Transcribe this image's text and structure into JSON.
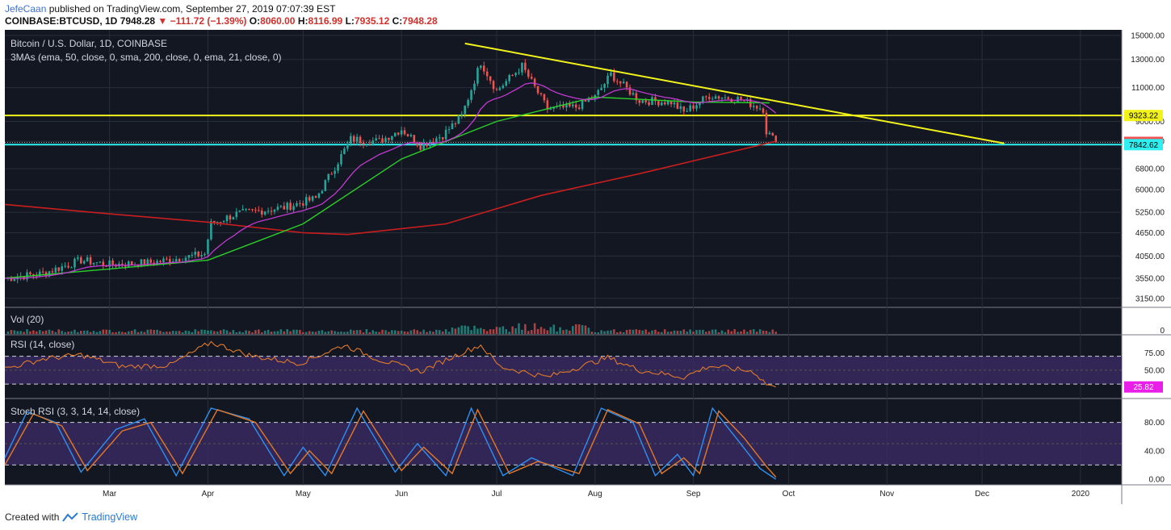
{
  "header": {
    "author": "JefeCaan",
    "published": "published on TradingView.com, September 27, 2019 07:07:39 EST",
    "symbol": "COINBASE:BTCUSD, 1D",
    "last": "7948.28",
    "change": "−111.72 (−1.39%)",
    "o_label": "O:",
    "o": "8060.00",
    "h_label": "H:",
    "h": "8116.99",
    "l_label": "L:",
    "l": "7935.12",
    "c_label": "C:",
    "c": "7948.28"
  },
  "footer": {
    "created": "Created with",
    "brand": "TradingView"
  },
  "colors": {
    "background": "#131722",
    "up": "#26a69a",
    "down": "#ef5350",
    "ema50": "#2bd12b",
    "sma200": "#c81e1e",
    "ema21": "#c03ad0",
    "trend": "#f3f31c",
    "cyan": "#2ef0f0",
    "rsi": "#e0792b",
    "stoch_k": "#2f8ff0",
    "stoch_d": "#e0792b",
    "band": "#3a2a63"
  },
  "chart_data": [
    {
      "type": "candlestick",
      "title": "Bitcoin / U.S. Dollar, 1D, COINBASE",
      "indicator_label": "3MAs (ema, 50, close, 0, sma, 200, close, 0, ema, 21, close, 0)",
      "price_axis_ticks": [
        "15000.00",
        "13000.00",
        "11000.00",
        "9000.00",
        "8000.00",
        "6800.00",
        "6000.00",
        "5250.00",
        "4650.00",
        "4050.00",
        "3550.00",
        "3150.00"
      ],
      "price_axis_values": [
        15000,
        13000,
        11000,
        9000,
        8000,
        6800,
        6000,
        5250,
        4650,
        4050,
        3550,
        3150
      ],
      "log_scale": true,
      "time_axis_labels": [
        "Mar",
        "Apr",
        "May",
        "Jun",
        "Jul",
        "Aug",
        "Sep",
        "Oct",
        "Nov",
        "Dec",
        "2020"
      ],
      "price_badges": [
        {
          "text": "9323.22",
          "value": 9323.22,
          "color": "#f3f31c"
        },
        {
          "text": "7948.28",
          "value": 7948.28,
          "color": "#ef5350"
        },
        {
          "text": "7842.62",
          "value": 7842.62,
          "color": "#2ef0f0"
        }
      ],
      "horizontal_lines": [
        {
          "name": "resistance",
          "value": 9323.22,
          "color": "#f3f31c"
        },
        {
          "name": "support",
          "value": 7842.62,
          "color": "#2ef0f0"
        },
        {
          "name": "last",
          "value": 7948.28,
          "color": "#aaaaaa"
        }
      ],
      "trendline": {
        "from": {
          "date": "2019-06-21",
          "price": 14300
        },
        "to": {
          "date": "2019-12-08",
          "price": 7900
        }
      },
      "closes_anchor": [
        {
          "date": "2019-01-27",
          "price": 3550
        },
        {
          "date": "2019-02-08",
          "price": 3650
        },
        {
          "date": "2019-02-20",
          "price": 3950
        },
        {
          "date": "2019-03-01",
          "price": 3850
        },
        {
          "date": "2019-03-15",
          "price": 3900
        },
        {
          "date": "2019-03-31",
          "price": 4100
        },
        {
          "date": "2019-04-02",
          "price": 4900
        },
        {
          "date": "2019-04-10",
          "price": 5200
        },
        {
          "date": "2019-04-25",
          "price": 5400
        },
        {
          "date": "2019-05-05",
          "price": 5700
        },
        {
          "date": "2019-05-12",
          "price": 7100
        },
        {
          "date": "2019-05-16",
          "price": 8100
        },
        {
          "date": "2019-05-25",
          "price": 8000
        },
        {
          "date": "2019-06-01",
          "price": 8600
        },
        {
          "date": "2019-06-07",
          "price": 7800
        },
        {
          "date": "2019-06-14",
          "price": 8300
        },
        {
          "date": "2019-06-20",
          "price": 9300
        },
        {
          "date": "2019-06-26",
          "price": 12800
        },
        {
          "date": "2019-07-01",
          "price": 10800
        },
        {
          "date": "2019-07-09",
          "price": 12500
        },
        {
          "date": "2019-07-17",
          "price": 9700
        },
        {
          "date": "2019-07-26",
          "price": 9800
        },
        {
          "date": "2019-08-01",
          "price": 10400
        },
        {
          "date": "2019-08-06",
          "price": 11900
        },
        {
          "date": "2019-08-15",
          "price": 10200
        },
        {
          "date": "2019-08-25",
          "price": 10100
        },
        {
          "date": "2019-08-29",
          "price": 9500
        },
        {
          "date": "2019-09-06",
          "price": 10500
        },
        {
          "date": "2019-09-15",
          "price": 10300
        },
        {
          "date": "2019-09-23",
          "price": 9700
        },
        {
          "date": "2019-09-24",
          "price": 8500
        },
        {
          "date": "2019-09-27",
          "price": 7948
        }
      ],
      "ema50_points": [
        {
          "date": "2019-01-27",
          "price": 3550
        },
        {
          "date": "2019-03-01",
          "price": 3750
        },
        {
          "date": "2019-04-01",
          "price": 3950
        },
        {
          "date": "2019-05-01",
          "price": 4900
        },
        {
          "date": "2019-06-01",
          "price": 7200
        },
        {
          "date": "2019-07-01",
          "price": 9000
        },
        {
          "date": "2019-08-01",
          "price": 10400
        },
        {
          "date": "2019-09-01",
          "price": 10100
        },
        {
          "date": "2019-09-25",
          "price": 10050
        }
      ],
      "sma200_points": [
        {
          "date": "2019-01-27",
          "price": 5500
        },
        {
          "date": "2019-03-01",
          "price": 5200
        },
        {
          "date": "2019-04-01",
          "price": 4950
        },
        {
          "date": "2019-05-01",
          "price": 4650
        },
        {
          "date": "2019-05-15",
          "price": 4600
        },
        {
          "date": "2019-06-15",
          "price": 4900
        },
        {
          "date": "2019-07-15",
          "price": 5800
        },
        {
          "date": "2019-08-15",
          "price": 6600
        },
        {
          "date": "2019-09-27",
          "price": 8000
        }
      ]
    },
    {
      "type": "bar",
      "title": "Vol (20)",
      "axis_ticks": [
        "0"
      ]
    },
    {
      "type": "line",
      "title": "RSI (14, close)",
      "axis_ticks": [
        "75.00",
        "50.00"
      ],
      "axis_values": [
        75,
        50
      ],
      "bands": [
        70,
        30
      ],
      "last_badge": {
        "text": "25.82",
        "value": 25.82
      },
      "points": [
        {
          "date": "2019-01-27",
          "value": 52
        },
        {
          "date": "2019-02-08",
          "value": 66
        },
        {
          "date": "2019-02-20",
          "value": 72
        },
        {
          "date": "2019-03-05",
          "value": 55
        },
        {
          "date": "2019-03-20",
          "value": 57
        },
        {
          "date": "2019-04-02",
          "value": 90
        },
        {
          "date": "2019-04-15",
          "value": 70
        },
        {
          "date": "2019-04-30",
          "value": 60
        },
        {
          "date": "2019-05-14",
          "value": 86
        },
        {
          "date": "2019-05-25",
          "value": 65
        },
        {
          "date": "2019-06-07",
          "value": 48
        },
        {
          "date": "2019-06-20",
          "value": 75
        },
        {
          "date": "2019-06-26",
          "value": 86
        },
        {
          "date": "2019-07-02",
          "value": 55
        },
        {
          "date": "2019-07-17",
          "value": 40
        },
        {
          "date": "2019-08-05",
          "value": 68
        },
        {
          "date": "2019-08-15",
          "value": 50
        },
        {
          "date": "2019-08-29",
          "value": 40
        },
        {
          "date": "2019-09-06",
          "value": 56
        },
        {
          "date": "2019-09-20",
          "value": 48
        },
        {
          "date": "2019-09-24",
          "value": 30
        },
        {
          "date": "2019-09-27",
          "value": 25.82
        }
      ]
    },
    {
      "type": "line",
      "title": "Stoch RSI (3, 3, 14, 14, close)",
      "axis_ticks": [
        "80.00",
        "40.00",
        "0.00"
      ],
      "axis_values": [
        80,
        40,
        0
      ],
      "bands": [
        80,
        20
      ],
      "series": [
        {
          "name": "K",
          "points": [
            {
              "date": "2019-01-27",
              "value": 30
            },
            {
              "date": "2019-02-03",
              "value": 95
            },
            {
              "date": "2019-02-12",
              "value": 80
            },
            {
              "date": "2019-02-20",
              "value": 10
            },
            {
              "date": "2019-03-03",
              "value": 70
            },
            {
              "date": "2019-03-12",
              "value": 85
            },
            {
              "date": "2019-03-22",
              "value": 5
            },
            {
              "date": "2019-04-02",
              "value": 100
            },
            {
              "date": "2019-04-14",
              "value": 85
            },
            {
              "date": "2019-04-25",
              "value": 5
            },
            {
              "date": "2019-05-01",
              "value": 45
            },
            {
              "date": "2019-05-08",
              "value": 5
            },
            {
              "date": "2019-05-18",
              "value": 100
            },
            {
              "date": "2019-05-30",
              "value": 10
            },
            {
              "date": "2019-06-06",
              "value": 50
            },
            {
              "date": "2019-06-15",
              "value": 5
            },
            {
              "date": "2019-06-23",
              "value": 100
            },
            {
              "date": "2019-07-03",
              "value": 5
            },
            {
              "date": "2019-07-12",
              "value": 30
            },
            {
              "date": "2019-07-25",
              "value": 5
            },
            {
              "date": "2019-08-03",
              "value": 100
            },
            {
              "date": "2019-08-13",
              "value": 80
            },
            {
              "date": "2019-08-20",
              "value": 5
            },
            {
              "date": "2019-08-27",
              "value": 35
            },
            {
              "date": "2019-09-01",
              "value": 5
            },
            {
              "date": "2019-09-07",
              "value": 100
            },
            {
              "date": "2019-09-15",
              "value": 55
            },
            {
              "date": "2019-09-22",
              "value": 15
            },
            {
              "date": "2019-09-27",
              "value": 0
            }
          ]
        },
        {
          "name": "D",
          "points": [
            {
              "date": "2019-01-27",
              "value": 20
            },
            {
              "date": "2019-02-05",
              "value": 92
            },
            {
              "date": "2019-02-14",
              "value": 75
            },
            {
              "date": "2019-02-22",
              "value": 12
            },
            {
              "date": "2019-03-05",
              "value": 68
            },
            {
              "date": "2019-03-14",
              "value": 80
            },
            {
              "date": "2019-03-24",
              "value": 8
            },
            {
              "date": "2019-04-04",
              "value": 98
            },
            {
              "date": "2019-04-16",
              "value": 80
            },
            {
              "date": "2019-04-27",
              "value": 8
            },
            {
              "date": "2019-05-03",
              "value": 40
            },
            {
              "date": "2019-05-10",
              "value": 8
            },
            {
              "date": "2019-05-20",
              "value": 96
            },
            {
              "date": "2019-06-01",
              "value": 12
            },
            {
              "date": "2019-06-08",
              "value": 45
            },
            {
              "date": "2019-06-17",
              "value": 8
            },
            {
              "date": "2019-06-25",
              "value": 98
            },
            {
              "date": "2019-07-05",
              "value": 8
            },
            {
              "date": "2019-07-14",
              "value": 25
            },
            {
              "date": "2019-07-27",
              "value": 8
            },
            {
              "date": "2019-08-05",
              "value": 98
            },
            {
              "date": "2019-08-15",
              "value": 78
            },
            {
              "date": "2019-08-22",
              "value": 8
            },
            {
              "date": "2019-08-29",
              "value": 30
            },
            {
              "date": "2019-09-03",
              "value": 8
            },
            {
              "date": "2019-09-09",
              "value": 96
            },
            {
              "date": "2019-09-17",
              "value": 58
            },
            {
              "date": "2019-09-24",
              "value": 18
            },
            {
              "date": "2019-09-27",
              "value": 3
            }
          ]
        }
      ]
    }
  ]
}
